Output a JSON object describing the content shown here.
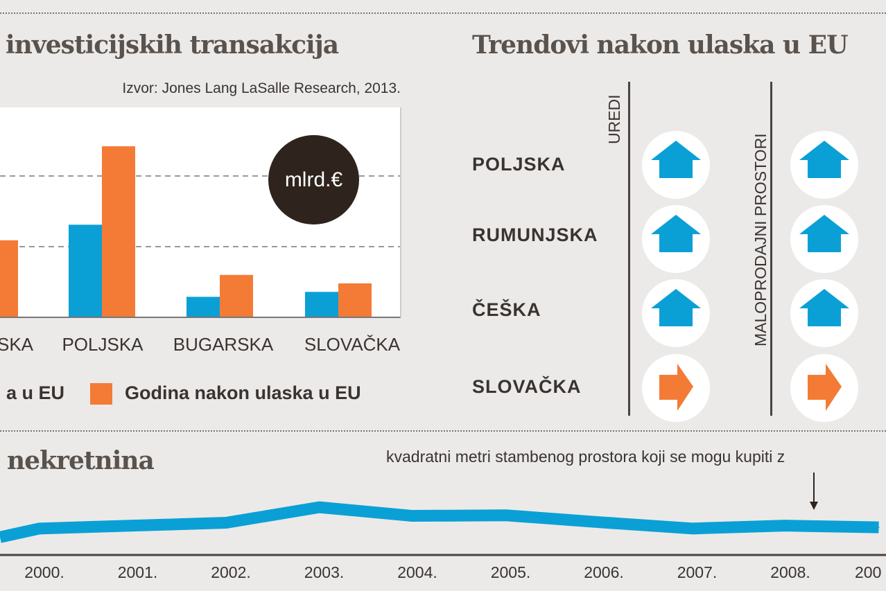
{
  "colors": {
    "before": "#0aa0d6",
    "after": "#f47b35",
    "badge": "#2e241d",
    "background": "#ebeae8"
  },
  "chart_data": [
    {
      "type": "bar",
      "title": "investicijskih transakcija",
      "source": "Izvor: Jones Lang LaSalle Research, 2013.",
      "unit_badge": "mlrd.€",
      "categories": [
        "SKA",
        "POLJSKA",
        "BUGARSKA",
        "SLOVAČKA"
      ],
      "series": [
        {
          "name": "a u EU",
          "values": [
            null,
            1.31,
            0.29,
            0.36
          ]
        },
        {
          "name": "Godina nakon ulaska u EU",
          "values": [
            1.09,
            2.42,
            0.6,
            0.48
          ]
        }
      ],
      "ylim": [
        0,
        2.97
      ],
      "grid": true,
      "legend": "bottom"
    },
    {
      "type": "line",
      "title": "nekretnina",
      "annotation": "kvadratni metri stambenog prostora koji se mogu kupiti z",
      "x": [
        "2000.",
        "2001.",
        "2002.",
        "2003.",
        "2004.",
        "2005.",
        "2006.",
        "2007.",
        "2008.",
        "200"
      ],
      "series": [
        {
          "values": [
            46,
            51,
            56,
            83,
            68,
            69,
            57,
            46,
            51,
            48
          ]
        }
      ],
      "ylim": [
        0,
        100
      ],
      "grid": false
    }
  ],
  "trends": {
    "title": "Trendovi nakon ulaska u EU",
    "columns": [
      "UREDI",
      "MALOPRODAJNI PROSTORI"
    ],
    "rows": [
      {
        "country": "POLJSKA",
        "uredi": "up",
        "maloprodajni": "up"
      },
      {
        "country": "RUMUNJSKA",
        "uredi": "up",
        "maloprodajni": "up"
      },
      {
        "country": "ČEŠKA",
        "uredi": "up",
        "maloprodajni": "up"
      },
      {
        "country": "SLOVAČKA",
        "uredi": "flat",
        "maloprodajni": "flat"
      }
    ]
  }
}
